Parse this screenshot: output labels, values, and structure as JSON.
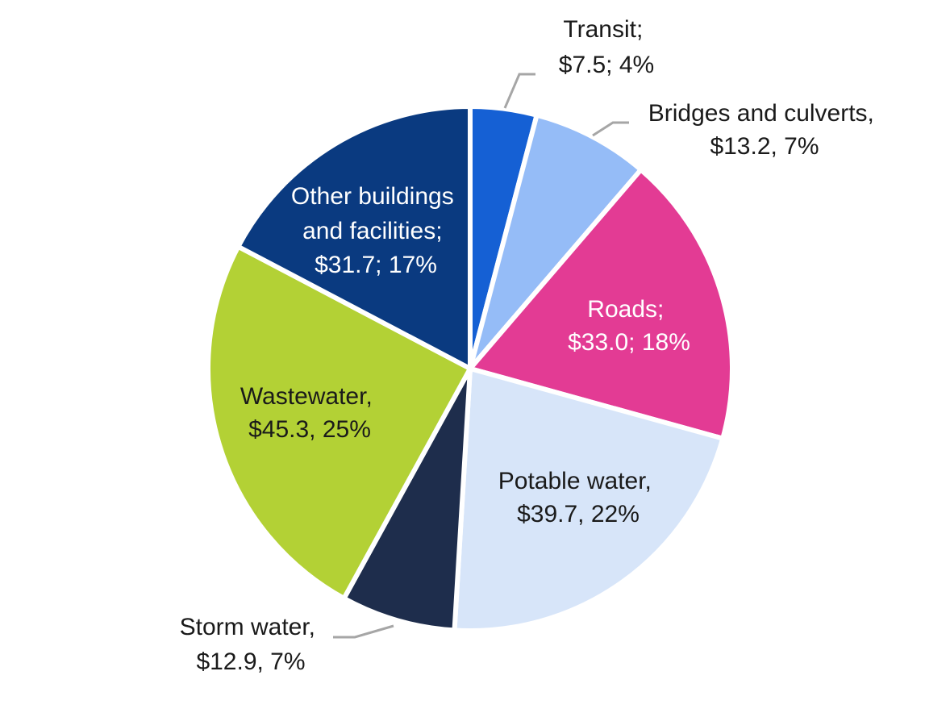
{
  "chart_data": {
    "type": "pie",
    "title": "",
    "unit": "$",
    "slices": [
      {
        "name": "Transit",
        "value": 7.5,
        "percent": 4,
        "color": "#1560d4",
        "label_color": "#1a1a1a",
        "line1": "Transit;",
        "line2": "$7.5; 4%"
      },
      {
        "name": "Bridges and culverts",
        "value": 13.2,
        "percent": 7,
        "color": "#95bcf7",
        "label_color": "#1a1a1a",
        "line1": "Bridges and culverts,",
        "line2": "$13.2, 7%"
      },
      {
        "name": "Roads",
        "value": 33.0,
        "percent": 18,
        "color": "#e33b94",
        "label_color": "#ffffff",
        "line1": "Roads;",
        "line2": "$33.0; 18%"
      },
      {
        "name": "Potable water",
        "value": 39.7,
        "percent": 22,
        "color": "#d7e5f9",
        "label_color": "#1a1a1a",
        "line1": "Potable water,",
        "line2": "$39.7, 22%"
      },
      {
        "name": "Storm water",
        "value": 12.9,
        "percent": 7,
        "color": "#1e2d4c",
        "label_color": "#1a1a1a",
        "line1": "Storm water,",
        "line2": "$12.9, 7%"
      },
      {
        "name": "Wastewater",
        "value": 45.3,
        "percent": 25,
        "color": "#b3d135",
        "label_color": "#1a1a1a",
        "line1": "Wastewater,",
        "line2": "$45.3, 25%"
      },
      {
        "name": "Other buildings and facilities",
        "value": 31.7,
        "percent": 17,
        "color": "#0a3a80",
        "label_color": "#ffffff",
        "line1": "Other buildings",
        "line2": "and facilities;",
        "line3": "$31.7; 17%"
      }
    ],
    "leader_line_color": "#a6a6a6",
    "start_angle": "12 o'clock",
    "direction": "clockwise"
  }
}
